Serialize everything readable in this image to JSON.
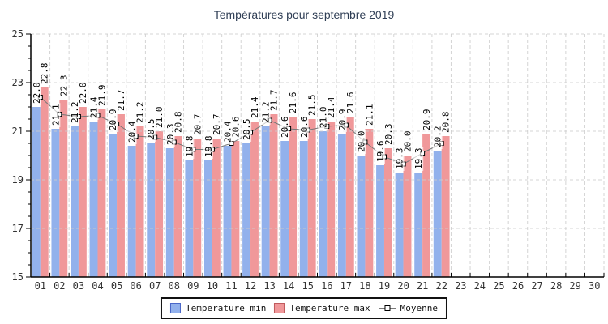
{
  "title": {
    "text": "Températures pour septembre 2019"
  },
  "colors": {
    "bar_min": "#92b1ec",
    "bar_max": "#f0989a",
    "swatch_min_border": "#4a67c8",
    "swatch_max_border": "#c05a5e",
    "moyenne_line": "#787878",
    "grid": "#cccccc",
    "axis": "#000000",
    "tick_text": "#333333",
    "title_text": "#2f3e55",
    "label_text": "#000000"
  },
  "legend": {
    "items": [
      {
        "label": "Temperature min"
      },
      {
        "label": "Temperature max"
      },
      {
        "label": "Moyenne"
      }
    ]
  },
  "chart_data": {
    "type": "bar",
    "title": "Températures pour septembre 2019",
    "xlabel": "",
    "ylabel": "",
    "ylim": [
      15,
      25
    ],
    "y_ticks": [
      15,
      17,
      19,
      21,
      23,
      25
    ],
    "grid": true,
    "legend_position": "bottom",
    "value_labels": "rotated-90",
    "categories": [
      "01",
      "02",
      "03",
      "04",
      "05",
      "06",
      "07",
      "08",
      "09",
      "10",
      "11",
      "12",
      "13",
      "14",
      "15",
      "16",
      "17",
      "18",
      "19",
      "20",
      "21",
      "22",
      "23",
      "24",
      "25",
      "26",
      "27",
      "28",
      "29",
      "30"
    ],
    "days_with_data": 22,
    "series": [
      {
        "name": "Temperature min",
        "type": "bar",
        "color": "#92b1ec",
        "values": [
          22.0,
          21.1,
          21.2,
          21.4,
          20.9,
          20.4,
          20.5,
          20.3,
          19.8,
          19.8,
          20.4,
          20.5,
          21.2,
          20.6,
          20.6,
          21.0,
          20.9,
          20.0,
          19.6,
          19.3,
          19.3,
          20.2
        ]
      },
      {
        "name": "Temperature max",
        "type": "bar",
        "color": "#f0989a",
        "values": [
          22.8,
          22.3,
          22.0,
          21.9,
          21.7,
          21.2,
          21.0,
          20.8,
          20.7,
          20.7,
          20.6,
          21.4,
          21.7,
          21.6,
          21.5,
          21.4,
          21.6,
          21.1,
          20.3,
          20.0,
          20.9,
          20.8
        ]
      },
      {
        "name": "Moyenne",
        "type": "line",
        "color": "#787878",
        "values": [
          22.4,
          21.7,
          21.6,
          21.65,
          21.3,
          20.8,
          20.75,
          20.55,
          20.25,
          20.25,
          20.5,
          20.95,
          21.45,
          21.1,
          21.05,
          21.2,
          21.25,
          20.55,
          19.95,
          19.65,
          20.1,
          20.5
        ]
      }
    ]
  }
}
